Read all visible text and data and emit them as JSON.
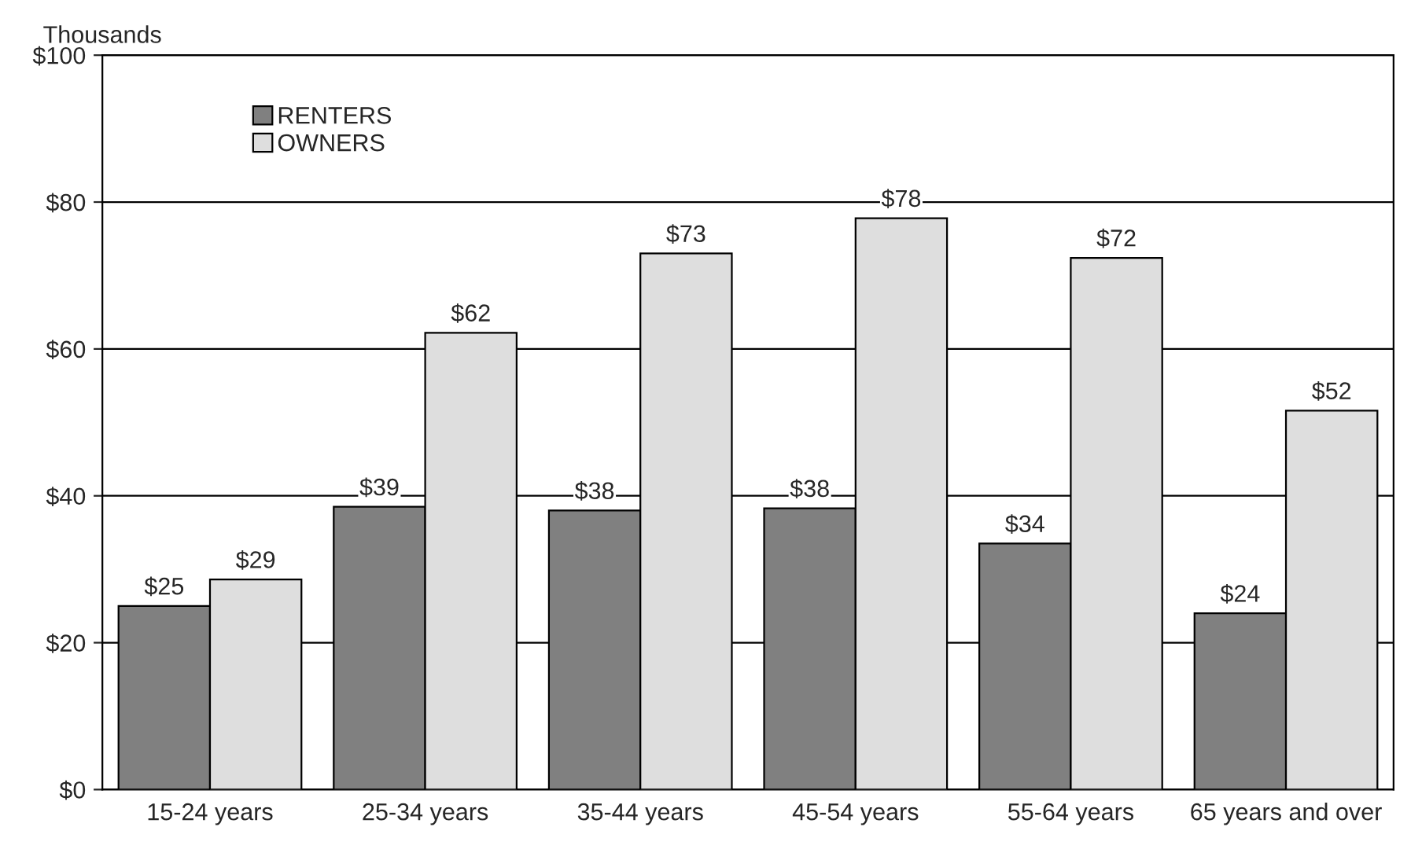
{
  "chart_data": {
    "type": "bar",
    "ylabel": "Thousands",
    "categories": [
      "15-24 years",
      "25-34 years",
      "35-44 years",
      "45-54 years",
      "55-64 years",
      "65 years and over"
    ],
    "series": [
      {
        "name": "RENTERS",
        "color": "#808080",
        "values": [
          25,
          38.5,
          38,
          38.3,
          33.5,
          24
        ],
        "value_labels": [
          "$25",
          "$39",
          "$38",
          "$38",
          "$34",
          "$24"
        ]
      },
      {
        "name": "OWNERS",
        "color": "#dedede",
        "values": [
          28.6,
          62.2,
          73,
          77.8,
          72.4,
          51.6
        ],
        "value_labels": [
          "$29",
          "$62",
          "$73",
          "$78",
          "$72",
          "$52"
        ]
      }
    ],
    "ylim": [
      0,
      100
    ],
    "yticks": [
      {
        "value": 0,
        "label": "$0"
      },
      {
        "value": 20,
        "label": "$20"
      },
      {
        "value": 40,
        "label": "$40"
      },
      {
        "value": 60,
        "label": "$60"
      },
      {
        "value": 80,
        "label": "$80"
      },
      {
        "value": 100,
        "label": "$100"
      }
    ],
    "grid": "y",
    "legend": "top left"
  }
}
